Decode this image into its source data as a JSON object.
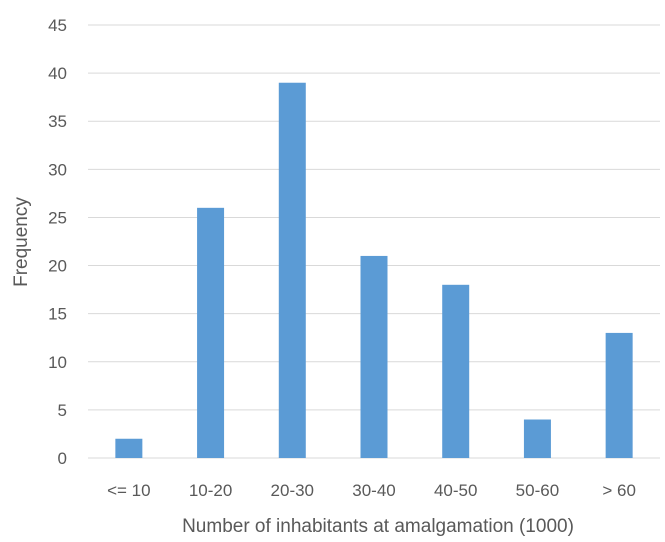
{
  "chart_data": {
    "type": "bar",
    "title": "",
    "xlabel": "Number  of inhabitants at amalgamation (1000)",
    "ylabel": "Frequency",
    "categories": [
      "<= 10",
      "10-20",
      "20-30",
      "30-40",
      "40-50",
      "50-60",
      "> 60"
    ],
    "values": [
      2,
      26,
      39,
      21,
      18,
      4,
      13
    ],
    "ylim": [
      0,
      45
    ],
    "yticks": [
      "0",
      "5",
      "10",
      "15",
      "20",
      "25",
      "30",
      "35",
      "40",
      "45"
    ],
    "grid": true,
    "legend": "none",
    "bar_color": "#5b9bd5"
  }
}
